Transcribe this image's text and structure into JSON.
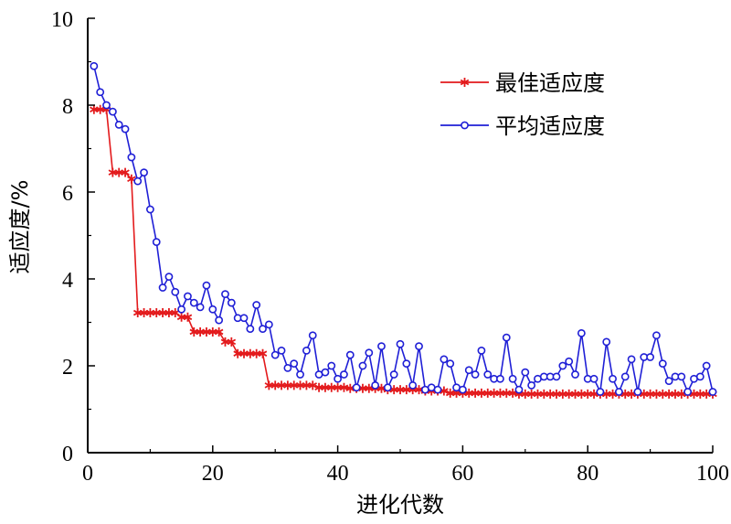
{
  "chart_data": {
    "type": "line",
    "xlabel": "进化代数",
    "ylabel": "适应度/%",
    "xlim": [
      0,
      100
    ],
    "ylim": [
      0,
      10
    ],
    "xticks": [
      0,
      20,
      40,
      60,
      80,
      100
    ],
    "yticks": [
      0,
      2,
      4,
      6,
      8,
      10
    ],
    "grid": false,
    "legend_position": "top-right",
    "x": [
      1,
      2,
      3,
      4,
      5,
      6,
      7,
      8,
      9,
      10,
      11,
      12,
      13,
      14,
      15,
      16,
      17,
      18,
      19,
      20,
      21,
      22,
      23,
      24,
      25,
      26,
      27,
      28,
      29,
      30,
      31,
      32,
      33,
      34,
      35,
      36,
      37,
      38,
      39,
      40,
      41,
      42,
      43,
      44,
      45,
      46,
      47,
      48,
      49,
      50,
      51,
      52,
      53,
      54,
      55,
      56,
      57,
      58,
      59,
      60,
      61,
      62,
      63,
      64,
      65,
      66,
      67,
      68,
      69,
      70,
      71,
      72,
      73,
      74,
      75,
      76,
      77,
      78,
      79,
      80,
      81,
      82,
      83,
      84,
      85,
      86,
      87,
      88,
      89,
      90,
      91,
      92,
      93,
      94,
      95,
      96,
      97,
      98,
      99,
      100
    ],
    "series": [
      {
        "name": "最佳适应度",
        "color": "#e31a1c",
        "marker": "star",
        "values": [
          7.9,
          7.9,
          7.9,
          6.45,
          6.45,
          6.45,
          6.3,
          3.22,
          3.22,
          3.22,
          3.22,
          3.22,
          3.22,
          3.22,
          3.12,
          3.12,
          2.78,
          2.78,
          2.78,
          2.78,
          2.78,
          2.55,
          2.55,
          2.28,
          2.28,
          2.28,
          2.28,
          2.28,
          1.55,
          1.55,
          1.55,
          1.55,
          1.55,
          1.55,
          1.55,
          1.55,
          1.5,
          1.5,
          1.5,
          1.5,
          1.5,
          1.48,
          1.48,
          1.48,
          1.48,
          1.48,
          1.48,
          1.45,
          1.45,
          1.45,
          1.45,
          1.45,
          1.45,
          1.42,
          1.42,
          1.42,
          1.42,
          1.37,
          1.37,
          1.37,
          1.37,
          1.37,
          1.37,
          1.37,
          1.37,
          1.37,
          1.37,
          1.37,
          1.35,
          1.35,
          1.35,
          1.35,
          1.35,
          1.35,
          1.35,
          1.35,
          1.35,
          1.35,
          1.35,
          1.35,
          1.35,
          1.35,
          1.35,
          1.35,
          1.35,
          1.35,
          1.35,
          1.35,
          1.35,
          1.35,
          1.35,
          1.35,
          1.35,
          1.35,
          1.35,
          1.35,
          1.35,
          1.35,
          1.35,
          1.35
        ]
      },
      {
        "name": "平均适应度",
        "color": "#1f1fd6",
        "marker": "circle",
        "values": [
          8.9,
          8.3,
          8.0,
          7.85,
          7.55,
          7.45,
          6.8,
          6.25,
          6.45,
          5.6,
          4.85,
          3.8,
          4.05,
          3.7,
          3.3,
          3.6,
          3.45,
          3.35,
          3.85,
          3.3,
          3.05,
          3.65,
          3.45,
          3.1,
          3.1,
          2.85,
          3.4,
          2.85,
          2.95,
          2.25,
          2.35,
          1.95,
          2.05,
          1.8,
          2.35,
          2.7,
          1.8,
          1.85,
          2.0,
          1.7,
          1.8,
          2.25,
          1.5,
          2.0,
          2.3,
          1.55,
          2.45,
          1.5,
          1.8,
          2.5,
          2.05,
          1.55,
          2.45,
          1.45,
          1.5,
          1.45,
          2.15,
          2.05,
          1.5,
          1.45,
          1.9,
          1.8,
          2.35,
          1.8,
          1.7,
          1.7,
          2.65,
          1.7,
          1.45,
          1.85,
          1.55,
          1.7,
          1.75,
          1.75,
          1.75,
          2.0,
          2.1,
          1.8,
          2.75,
          1.7,
          1.7,
          1.4,
          2.55,
          1.7,
          1.4,
          1.75,
          2.15,
          1.4,
          2.2,
          2.2,
          2.7,
          2.05,
          1.65,
          1.75,
          1.75,
          1.4,
          1.7,
          1.75,
          2.0,
          1.4
        ]
      }
    ]
  }
}
